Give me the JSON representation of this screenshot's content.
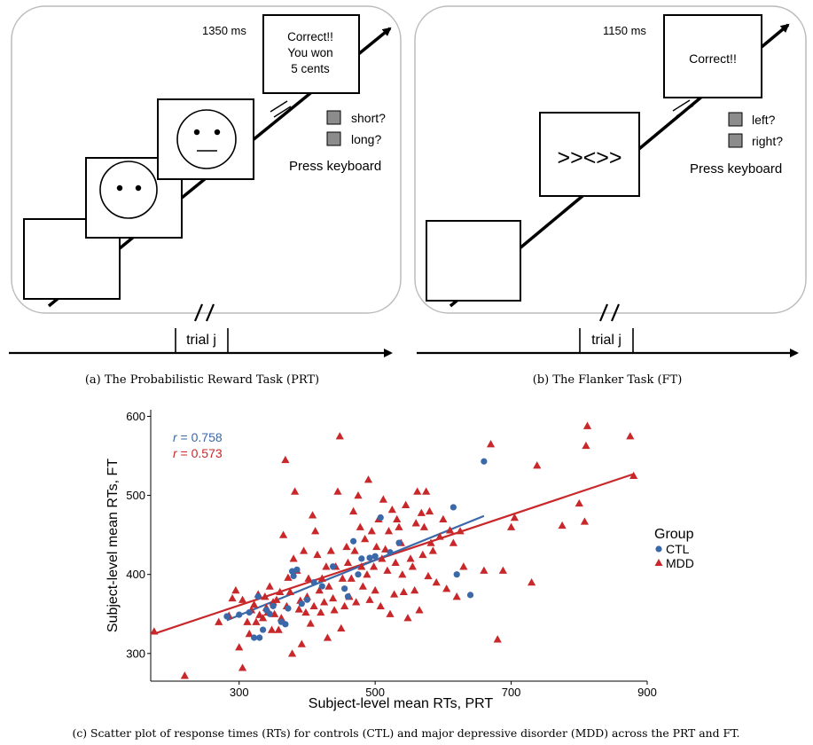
{
  "prt": {
    "time_label": "1350 ms",
    "feedback": [
      "Correct!!",
      "You won",
      "5 cents"
    ],
    "option_1": "short?",
    "option_2": "long?",
    "instruction": "Press keyboard",
    "trial_label": "trial j",
    "caption": "(a) The Probabilistic Reward Task (PRT)"
  },
  "ft": {
    "time_label": "1150 ms",
    "feedback": "Correct!!",
    "stimulus": ">><>>",
    "option_1": "left?",
    "option_2": "right?",
    "instruction": "Press keyboard",
    "trial_label": "trial j",
    "caption": "(b) The Flanker Task (FT)"
  },
  "scatter_caption": "(c) Scatter plot of response times (RTs) for controls (CTL) and major depressive disorder (MDD) across the PRT and FT.",
  "chart_data": {
    "type": "scatter",
    "xlabel": "Subject-level mean RTs,  PRT",
    "ylabel": "Subject-level mean RTs,  FT",
    "xlim": [
      170,
      900
    ],
    "ylim": [
      265,
      605
    ],
    "x_ticks": [
      300,
      500,
      700,
      900
    ],
    "y_ticks": [
      300,
      400,
      500,
      600
    ],
    "grid": false,
    "legend_title": "Group",
    "legend_position": "right",
    "annotations": [
      {
        "r_symbol": "r",
        "text": " = 0.758",
        "color": "#3a68a8"
      },
      {
        "r_symbol": "r",
        "text": " = 0.573",
        "color": "#c8282a"
      }
    ],
    "series": [
      {
        "name": "CTL",
        "marker": "circle",
        "color": "#3a68a8",
        "fit": [
          [
            282,
            342
          ],
          [
            660,
            474
          ]
        ],
        "points": [
          [
            282,
            347
          ],
          [
            300,
            349
          ],
          [
            315,
            352
          ],
          [
            322,
            320
          ],
          [
            328,
            372
          ],
          [
            330,
            320
          ],
          [
            335,
            330
          ],
          [
            340,
            355
          ],
          [
            345,
            350
          ],
          [
            350,
            360
          ],
          [
            362,
            340
          ],
          [
            368,
            337
          ],
          [
            372,
            357
          ],
          [
            378,
            404
          ],
          [
            380,
            398
          ],
          [
            385,
            406
          ],
          [
            392,
            363
          ],
          [
            400,
            368
          ],
          [
            410,
            390
          ],
          [
            422,
            385
          ],
          [
            438,
            410
          ],
          [
            455,
            382
          ],
          [
            460,
            372
          ],
          [
            468,
            442
          ],
          [
            475,
            400
          ],
          [
            480,
            420
          ],
          [
            492,
            421
          ],
          [
            500,
            423
          ],
          [
            508,
            472
          ],
          [
            522,
            428
          ],
          [
            535,
            440
          ],
          [
            615,
            485
          ],
          [
            620,
            400
          ],
          [
            640,
            374
          ],
          [
            660,
            543
          ]
        ]
      },
      {
        "name": "MDD",
        "marker": "triangle",
        "color": "#c8282a",
        "fit": [
          [
            175,
            325
          ],
          [
            880,
            527
          ]
        ],
        "points": [
          [
            175,
            328
          ],
          [
            220,
            272
          ],
          [
            270,
            340
          ],
          [
            285,
            348
          ],
          [
            290,
            370
          ],
          [
            295,
            380
          ],
          [
            300,
            308
          ],
          [
            305,
            368
          ],
          [
            305,
            282
          ],
          [
            312,
            340
          ],
          [
            315,
            325
          ],
          [
            318,
            355
          ],
          [
            322,
            362
          ],
          [
            325,
            340
          ],
          [
            328,
            375
          ],
          [
            330,
            349
          ],
          [
            335,
            345
          ],
          [
            338,
            372
          ],
          [
            340,
            358
          ],
          [
            342,
            352
          ],
          [
            345,
            385
          ],
          [
            348,
            330
          ],
          [
            350,
            365
          ],
          [
            352,
            350
          ],
          [
            355,
            368
          ],
          [
            358,
            330
          ],
          [
            360,
            378
          ],
          [
            362,
            345
          ],
          [
            365,
            450
          ],
          [
            368,
            545
          ],
          [
            370,
            360
          ],
          [
            372,
            396
          ],
          [
            375,
            378
          ],
          [
            378,
            300
          ],
          [
            380,
            420
          ],
          [
            382,
            505
          ],
          [
            385,
            405
          ],
          [
            388,
            356
          ],
          [
            390,
            367
          ],
          [
            392,
            312
          ],
          [
            395,
            430
          ],
          [
            398,
            352
          ],
          [
            400,
            372
          ],
          [
            402,
            395
          ],
          [
            405,
            338
          ],
          [
            408,
            475
          ],
          [
            410,
            360
          ],
          [
            412,
            455
          ],
          [
            415,
            425
          ],
          [
            418,
            380
          ],
          [
            420,
            352
          ],
          [
            422,
            395
          ],
          [
            425,
            365
          ],
          [
            428,
            410
          ],
          [
            430,
            320
          ],
          [
            432,
            385
          ],
          [
            435,
            430
          ],
          [
            438,
            370
          ],
          [
            440,
            355
          ],
          [
            442,
            410
          ],
          [
            445,
            505
          ],
          [
            448,
            575
          ],
          [
            450,
            332
          ],
          [
            452,
            395
          ],
          [
            455,
            360
          ],
          [
            458,
            435
          ],
          [
            460,
            415
          ],
          [
            462,
            372
          ],
          [
            465,
            395
          ],
          [
            468,
            480
          ],
          [
            470,
            430
          ],
          [
            472,
            365
          ],
          [
            475,
            500
          ],
          [
            478,
            460
          ],
          [
            480,
            410
          ],
          [
            482,
            385
          ],
          [
            485,
            445
          ],
          [
            488,
            400
          ],
          [
            490,
            520
          ],
          [
            492,
            368
          ],
          [
            495,
            455
          ],
          [
            498,
            410
          ],
          [
            500,
            380
          ],
          [
            502,
            435
          ],
          [
            505,
            470
          ],
          [
            508,
            360
          ],
          [
            510,
            420
          ],
          [
            512,
            495
          ],
          [
            515,
            432
          ],
          [
            518,
            405
          ],
          [
            520,
            455
          ],
          [
            522,
            350
          ],
          [
            525,
            482
          ],
          [
            528,
            375
          ],
          [
            530,
            415
          ],
          [
            532,
            470
          ],
          [
            535,
            460
          ],
          [
            538,
            440
          ],
          [
            540,
            400
          ],
          [
            542,
            378
          ],
          [
            545,
            488
          ],
          [
            548,
            345
          ],
          [
            552,
            420
          ],
          [
            555,
            410
          ],
          [
            558,
            380
          ],
          [
            560,
            465
          ],
          [
            562,
            505
          ],
          [
            565,
            355
          ],
          [
            568,
            478
          ],
          [
            570,
            425
          ],
          [
            572,
            460
          ],
          [
            575,
            505
          ],
          [
            578,
            398
          ],
          [
            580,
            480
          ],
          [
            582,
            440
          ],
          [
            585,
            430
          ],
          [
            590,
            390
          ],
          [
            595,
            448
          ],
          [
            600,
            470
          ],
          [
            605,
            382
          ],
          [
            610,
            456
          ],
          [
            615,
            440
          ],
          [
            620,
            372
          ],
          [
            625,
            455
          ],
          [
            630,
            410
          ],
          [
            660,
            405
          ],
          [
            670,
            565
          ],
          [
            680,
            318
          ],
          [
            688,
            405
          ],
          [
            700,
            460
          ],
          [
            705,
            472
          ],
          [
            730,
            390
          ],
          [
            738,
            538
          ],
          [
            775,
            462
          ],
          [
            800,
            490
          ],
          [
            808,
            467
          ],
          [
            810,
            563
          ],
          [
            812,
            588
          ],
          [
            875,
            575
          ],
          [
            880,
            525
          ]
        ]
      }
    ]
  }
}
